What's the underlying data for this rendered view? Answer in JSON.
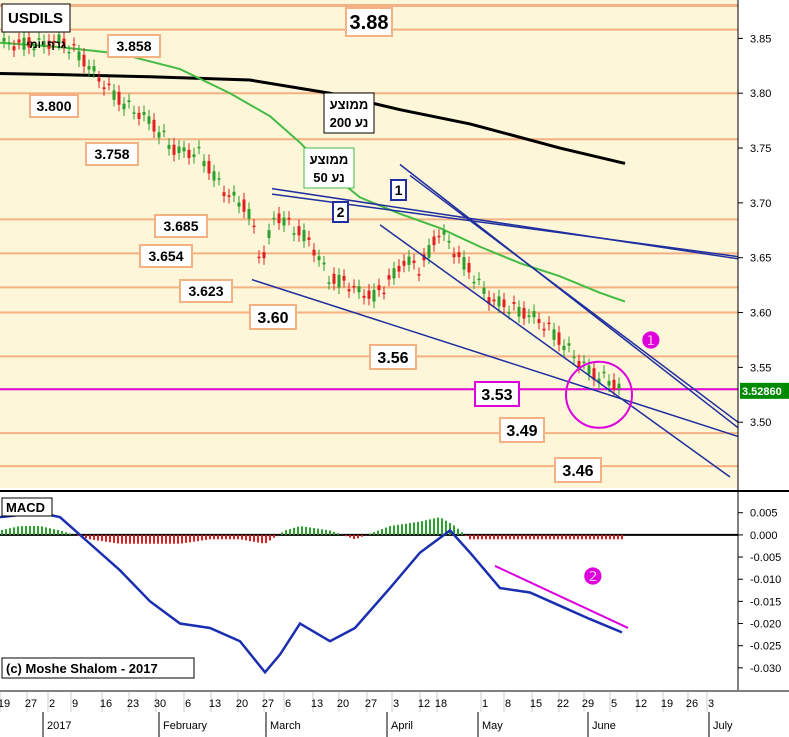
{
  "chart_data": [
    {
      "type": "candlestick",
      "title": "USDILS",
      "subtitle": "גרף יומי",
      "colors": {
        "up": "#2ca02c",
        "down": "#e02020",
        "bg": "#fdf6d8",
        "level": "#f4b183",
        "support": "#dd00dd",
        "trend": "#1f2f9f",
        "ma50": "#44bb44",
        "ma200": "#000000"
      },
      "ylim": [
        3.44,
        3.885
      ],
      "yticks": [
        "3.85",
        "3.80",
        "3.75",
        "3.70",
        "3.65",
        "3.60",
        "3.55",
        "3.50"
      ],
      "current_price": "3.52860",
      "levels": [
        {
          "value": 3.88,
          "label": "3.88"
        },
        {
          "value": 3.858,
          "label": "3.858"
        },
        {
          "value": 3.8,
          "label": "3.800"
        },
        {
          "value": 3.758,
          "label": "3.758"
        },
        {
          "value": 3.685,
          "label": "3.685"
        },
        {
          "value": 3.654,
          "label": "3.654"
        },
        {
          "value": 3.623,
          "label": "3.623"
        },
        {
          "value": 3.6,
          "label": "3.60"
        },
        {
          "value": 3.56,
          "label": "3.56"
        },
        {
          "value": 3.53,
          "label": "3.53"
        },
        {
          "value": 3.49,
          "label": "3.49"
        },
        {
          "value": 3.46,
          "label": "3.46"
        }
      ],
      "moving_averages": [
        {
          "name": "ממוצע נע 200",
          "label_line1": "ממוצע",
          "label_line2": "נע 200",
          "points": [
            [
              0,
              3.818
            ],
            [
              60,
              3.817
            ],
            [
              150,
              3.815
            ],
            [
              250,
              3.812
            ],
            [
              330,
              3.8
            ],
            [
              400,
              3.785
            ],
            [
              470,
              3.772
            ],
            [
              560,
              3.75
            ],
            [
              625,
              3.736
            ]
          ]
        },
        {
          "name": "ממוצע נע 50",
          "label_line1": "ממוצע",
          "label_line2": "נע 50",
          "points": [
            [
              0,
              3.846
            ],
            [
              60,
              3.842
            ],
            [
              120,
              3.836
            ],
            [
              180,
              3.822
            ],
            [
              230,
              3.8
            ],
            [
              270,
              3.779
            ],
            [
              300,
              3.755
            ],
            [
              330,
              3.727
            ],
            [
              360,
              3.705
            ],
            [
              400,
              3.69
            ],
            [
              440,
              3.677
            ],
            [
              480,
              3.66
            ],
            [
              520,
              3.645
            ],
            [
              560,
              3.633
            ],
            [
              600,
              3.618
            ],
            [
              625,
              3.61
            ]
          ]
        }
      ],
      "trendlines": [
        {
          "label": "1",
          "from": [
            400,
            3.735
          ],
          "to": [
            738,
            3.495
          ]
        },
        {
          "label": "",
          "from": [
            410,
            3.725
          ],
          "to": [
            738,
            3.5
          ]
        },
        {
          "label": "2",
          "from": [
            272,
            3.713
          ],
          "to": [
            738,
            3.649
          ]
        },
        {
          "label": "",
          "from": [
            272,
            3.708
          ],
          "to": [
            738,
            3.651
          ]
        },
        {
          "label": "",
          "from": [
            380,
            3.68
          ],
          "to": [
            730,
            3.45
          ]
        },
        {
          "label": "",
          "from": [
            252,
            3.63
          ],
          "to": [
            738,
            3.487
          ]
        }
      ],
      "annotations": [
        {
          "text": "❶",
          "color": "#dd00dd"
        }
      ],
      "support_level": 3.53
    },
    {
      "type": "macd",
      "title": "MACD",
      "ylim": [
        -0.035,
        0.009
      ],
      "yticks": [
        "0.005",
        "0.000",
        "-0.005",
        "-0.010",
        "-0.015",
        "-0.020",
        "-0.025",
        "-0.030"
      ],
      "line_points": [
        [
          0,
          0.004
        ],
        [
          40,
          0.005
        ],
        [
          60,
          0.004
        ],
        [
          90,
          -0.002
        ],
        [
          120,
          -0.008
        ],
        [
          150,
          -0.015
        ],
        [
          180,
          -0.02
        ],
        [
          210,
          -0.021
        ],
        [
          240,
          -0.024
        ],
        [
          265,
          -0.031
        ],
        [
          280,
          -0.027
        ],
        [
          300,
          -0.02
        ],
        [
          330,
          -0.024
        ],
        [
          355,
          -0.021
        ],
        [
          390,
          -0.012
        ],
        [
          420,
          -0.004
        ],
        [
          450,
          0.001
        ],
        [
          470,
          -0.004
        ],
        [
          500,
          -0.012
        ],
        [
          530,
          -0.013
        ],
        [
          560,
          -0.016
        ],
        [
          590,
          -0.019
        ],
        [
          622,
          -0.022
        ]
      ],
      "histogram_dates": [
        [
          0,
          0.001
        ],
        [
          20,
          0.002
        ],
        [
          40,
          0.002
        ],
        [
          60,
          0.001
        ],
        [
          90,
          -0.001
        ],
        [
          120,
          -0.002
        ],
        [
          150,
          -0.002
        ],
        [
          180,
          -0.002
        ],
        [
          210,
          -0.001
        ],
        [
          240,
          -0.001
        ],
        [
          265,
          -0.002
        ],
        [
          285,
          0.001
        ],
        [
          300,
          0.002
        ],
        [
          330,
          0.001
        ],
        [
          355,
          -0.001
        ],
        [
          390,
          0.002
        ],
        [
          420,
          0.003
        ],
        [
          440,
          0.004
        ],
        [
          455,
          0.002
        ],
        [
          470,
          -0.001
        ],
        [
          500,
          -0.001
        ],
        [
          530,
          -0.001
        ],
        [
          560,
          -0.001
        ],
        [
          590,
          -0.001
        ],
        [
          622,
          -0.001
        ]
      ],
      "divergence_line": {
        "from": [
          495,
          -0.007
        ],
        "to": [
          628,
          -0.021
        ]
      },
      "annotations": [
        {
          "text": "❷",
          "color": "#dd00dd"
        }
      ],
      "copyright": "(c) Moshe Shalom - 2017"
    }
  ],
  "x_axis": {
    "day_ticks": [
      "19",
      "27",
      "2",
      "9",
      "16",
      "23",
      "30",
      "6",
      "13",
      "20",
      "27",
      "6",
      "13",
      "20",
      "27",
      "3",
      "12",
      "18",
      "1",
      "8",
      "15",
      "22",
      "29",
      "5",
      "12",
      "19",
      "26",
      "3"
    ],
    "month_labels": [
      "2017",
      "February",
      "March",
      "April",
      "May",
      "June",
      "July"
    ]
  }
}
